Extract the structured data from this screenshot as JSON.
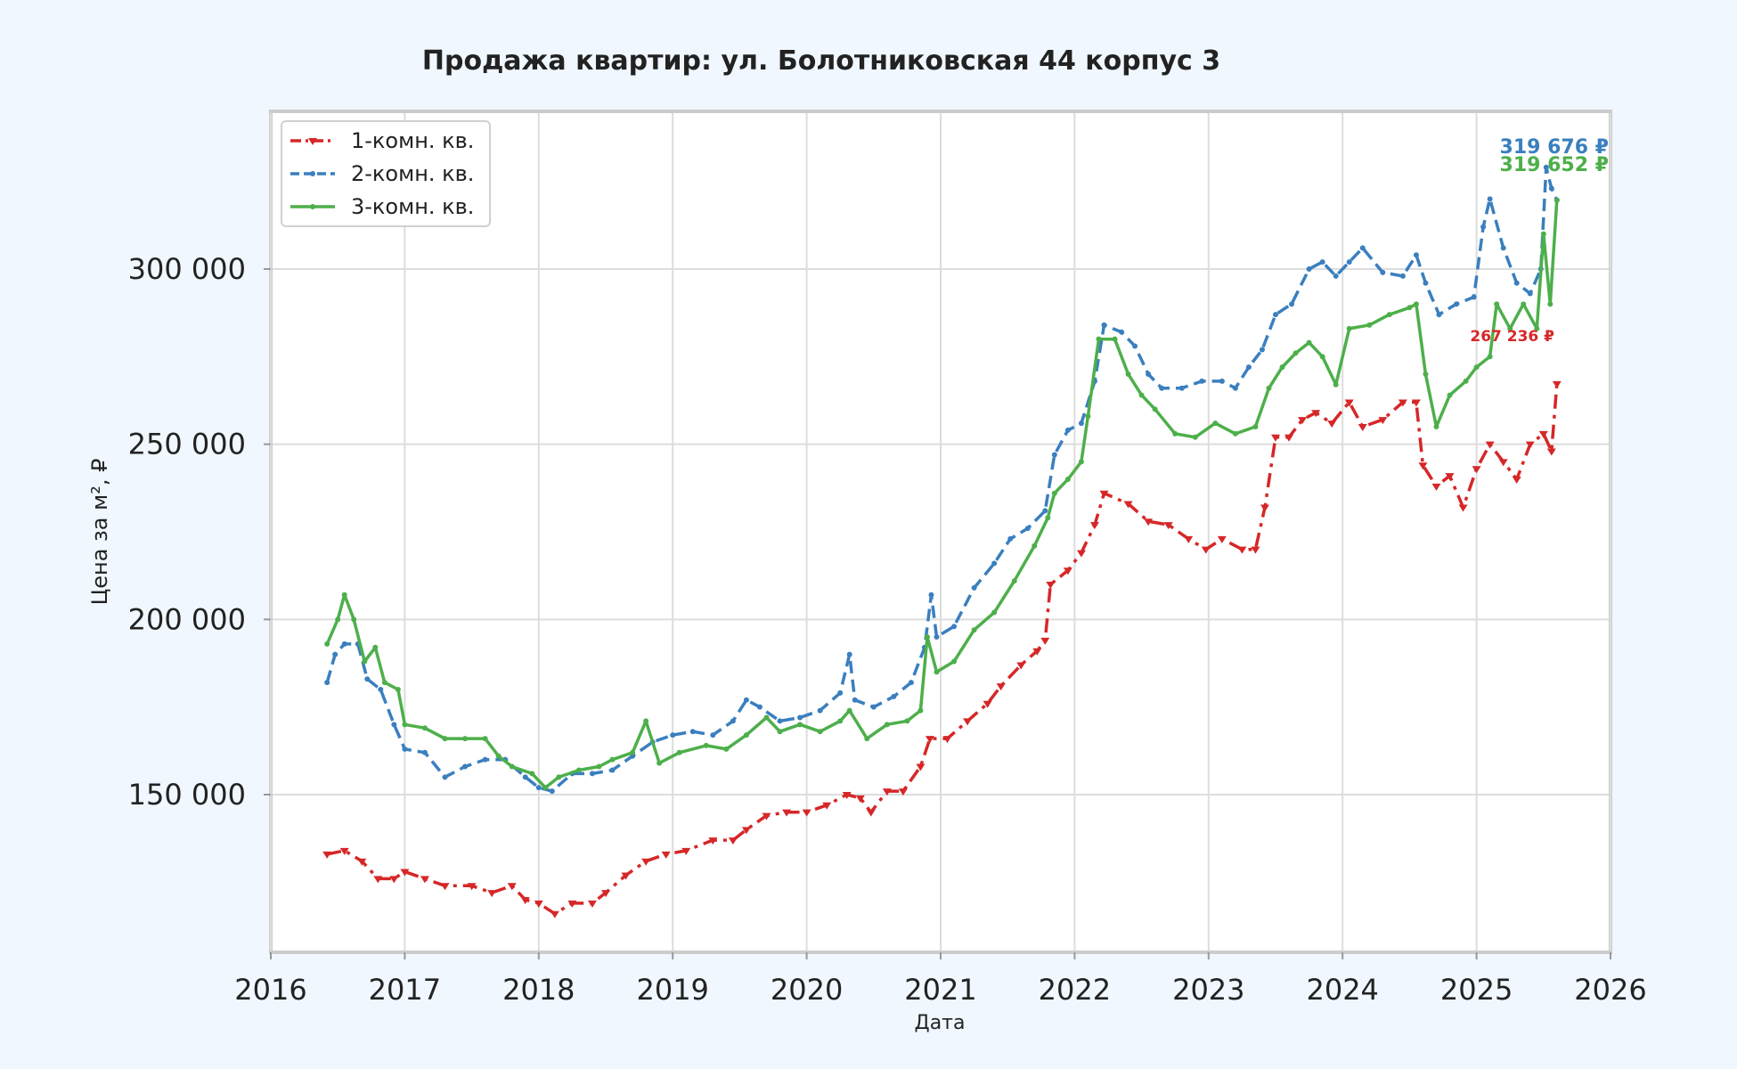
{
  "chart_data": {
    "type": "line",
    "title": "Продажа квартир: ул. Болотниковская 44 корпус 3",
    "xlabel": "Дата",
    "ylabel": "Цена за м², ₽",
    "xlim": [
      2016.0,
      2026.0
    ],
    "ylim": [
      105000,
      345000
    ],
    "x_ticks": [
      2016,
      2017,
      2018,
      2019,
      2020,
      2021,
      2022,
      2023,
      2024,
      2025,
      2026
    ],
    "y_ticks": [
      150000,
      200000,
      250000,
      300000
    ],
    "y_tick_labels": [
      "150 000",
      "200 000",
      "250 000",
      "300 000"
    ],
    "grid": true,
    "legend_position": "top-left",
    "series": [
      {
        "name": "1-комн. кв.",
        "color": "#d62728",
        "style": "dashdot",
        "marker": "triangle-down",
        "end_label": "267 236 ₽",
        "points": [
          [
            2016.42,
            133000
          ],
          [
            2016.55,
            134000
          ],
          [
            2016.68,
            131000
          ],
          [
            2016.8,
            126000
          ],
          [
            2016.92,
            126000
          ],
          [
            2017.0,
            128000
          ],
          [
            2017.15,
            126000
          ],
          [
            2017.3,
            124000
          ],
          [
            2017.5,
            124000
          ],
          [
            2017.65,
            122000
          ],
          [
            2017.8,
            124000
          ],
          [
            2017.9,
            120000
          ],
          [
            2018.0,
            119000
          ],
          [
            2018.12,
            116000
          ],
          [
            2018.25,
            119000
          ],
          [
            2018.4,
            119000
          ],
          [
            2018.5,
            122000
          ],
          [
            2018.65,
            127000
          ],
          [
            2018.8,
            131000
          ],
          [
            2018.95,
            133000
          ],
          [
            2019.1,
            134000
          ],
          [
            2019.3,
            137000
          ],
          [
            2019.45,
            137000
          ],
          [
            2019.55,
            140000
          ],
          [
            2019.7,
            144000
          ],
          [
            2019.85,
            145000
          ],
          [
            2020.0,
            145000
          ],
          [
            2020.15,
            147000
          ],
          [
            2020.3,
            150000
          ],
          [
            2020.4,
            149000
          ],
          [
            2020.48,
            145000
          ],
          [
            2020.6,
            151000
          ],
          [
            2020.72,
            151000
          ],
          [
            2020.85,
            158000
          ],
          [
            2020.92,
            166000
          ],
          [
            2021.05,
            166000
          ],
          [
            2021.2,
            171000
          ],
          [
            2021.35,
            176000
          ],
          [
            2021.45,
            181000
          ],
          [
            2021.6,
            187000
          ],
          [
            2021.72,
            191000
          ],
          [
            2021.78,
            194000
          ],
          [
            2021.82,
            210000
          ],
          [
            2021.95,
            214000
          ],
          [
            2022.05,
            219000
          ],
          [
            2022.15,
            227000
          ],
          [
            2022.22,
            236000
          ],
          [
            2022.4,
            233000
          ],
          [
            2022.55,
            228000
          ],
          [
            2022.7,
            227000
          ],
          [
            2022.85,
            223000
          ],
          [
            2022.98,
            220000
          ],
          [
            2023.1,
            223000
          ],
          [
            2023.25,
            220000
          ],
          [
            2023.35,
            220000
          ],
          [
            2023.42,
            232000
          ],
          [
            2023.5,
            252000
          ],
          [
            2023.6,
            252000
          ],
          [
            2023.7,
            257000
          ],
          [
            2023.8,
            259000
          ],
          [
            2023.92,
            256000
          ],
          [
            2024.05,
            262000
          ],
          [
            2024.15,
            255000
          ],
          [
            2024.3,
            257000
          ],
          [
            2024.45,
            262000
          ],
          [
            2024.55,
            262000
          ],
          [
            2024.6,
            244000
          ],
          [
            2024.7,
            238000
          ],
          [
            2024.8,
            241000
          ],
          [
            2024.9,
            232000
          ],
          [
            2025.0,
            243000
          ],
          [
            2025.1,
            250000
          ],
          [
            2025.2,
            245000
          ],
          [
            2025.3,
            240000
          ],
          [
            2025.4,
            250000
          ],
          [
            2025.5,
            253000
          ],
          [
            2025.56,
            248000
          ],
          [
            2025.6,
            267236
          ]
        ]
      },
      {
        "name": "2-комн. кв.",
        "color": "#3a7fbf",
        "style": "dashed",
        "marker": "point",
        "end_label": "319 676 ₽",
        "points": [
          [
            2016.42,
            182000
          ],
          [
            2016.48,
            190000
          ],
          [
            2016.55,
            193000
          ],
          [
            2016.65,
            193000
          ],
          [
            2016.72,
            183000
          ],
          [
            2016.82,
            180000
          ],
          [
            2016.92,
            170000
          ],
          [
            2017.0,
            163000
          ],
          [
            2017.15,
            162000
          ],
          [
            2017.3,
            155000
          ],
          [
            2017.45,
            158000
          ],
          [
            2017.6,
            160000
          ],
          [
            2017.75,
            160000
          ],
          [
            2017.9,
            155000
          ],
          [
            2018.0,
            152000
          ],
          [
            2018.1,
            151000
          ],
          [
            2018.25,
            156000
          ],
          [
            2018.4,
            156000
          ],
          [
            2018.55,
            157000
          ],
          [
            2018.7,
            161000
          ],
          [
            2018.85,
            165000
          ],
          [
            2019.0,
            167000
          ],
          [
            2019.15,
            168000
          ],
          [
            2019.3,
            167000
          ],
          [
            2019.45,
            171000
          ],
          [
            2019.55,
            177000
          ],
          [
            2019.65,
            175000
          ],
          [
            2019.8,
            171000
          ],
          [
            2019.95,
            172000
          ],
          [
            2020.1,
            174000
          ],
          [
            2020.25,
            179000
          ],
          [
            2020.32,
            190000
          ],
          [
            2020.36,
            177000
          ],
          [
            2020.5,
            175000
          ],
          [
            2020.65,
            178000
          ],
          [
            2020.78,
            182000
          ],
          [
            2020.88,
            192000
          ],
          [
            2020.93,
            207000
          ],
          [
            2020.97,
            195000
          ],
          [
            2021.1,
            198000
          ],
          [
            2021.25,
            209000
          ],
          [
            2021.4,
            216000
          ],
          [
            2021.52,
            223000
          ],
          [
            2021.65,
            226000
          ],
          [
            2021.78,
            231000
          ],
          [
            2021.85,
            247000
          ],
          [
            2021.95,
            254000
          ],
          [
            2022.05,
            256000
          ],
          [
            2022.15,
            268000
          ],
          [
            2022.22,
            284000
          ],
          [
            2022.35,
            282000
          ],
          [
            2022.45,
            278000
          ],
          [
            2022.55,
            270000
          ],
          [
            2022.65,
            266000
          ],
          [
            2022.8,
            266000
          ],
          [
            2022.95,
            268000
          ],
          [
            2023.1,
            268000
          ],
          [
            2023.2,
            266000
          ],
          [
            2023.3,
            272000
          ],
          [
            2023.4,
            277000
          ],
          [
            2023.5,
            287000
          ],
          [
            2023.62,
            290000
          ],
          [
            2023.75,
            300000
          ],
          [
            2023.85,
            302000
          ],
          [
            2023.95,
            298000
          ],
          [
            2024.05,
            302000
          ],
          [
            2024.15,
            306000
          ],
          [
            2024.3,
            299000
          ],
          [
            2024.45,
            298000
          ],
          [
            2024.55,
            304000
          ],
          [
            2024.62,
            296000
          ],
          [
            2024.72,
            287000
          ],
          [
            2024.85,
            290000
          ],
          [
            2024.98,
            292000
          ],
          [
            2025.05,
            312000
          ],
          [
            2025.1,
            320000
          ],
          [
            2025.2,
            306000
          ],
          [
            2025.3,
            296000
          ],
          [
            2025.4,
            293000
          ],
          [
            2025.48,
            300000
          ],
          [
            2025.52,
            329000
          ],
          [
            2025.56,
            323000
          ],
          [
            2025.6,
            319676
          ]
        ]
      },
      {
        "name": "3-комн. кв.",
        "color": "#4daf4a",
        "style": "solid",
        "marker": "point",
        "end_label": "319 652 ₽",
        "points": [
          [
            2016.42,
            193000
          ],
          [
            2016.5,
            200000
          ],
          [
            2016.55,
            207000
          ],
          [
            2016.62,
            200000
          ],
          [
            2016.7,
            188000
          ],
          [
            2016.78,
            192000
          ],
          [
            2016.85,
            182000
          ],
          [
            2016.95,
            180000
          ],
          [
            2017.0,
            170000
          ],
          [
            2017.15,
            169000
          ],
          [
            2017.3,
            166000
          ],
          [
            2017.45,
            166000
          ],
          [
            2017.6,
            166000
          ],
          [
            2017.7,
            161000
          ],
          [
            2017.8,
            158000
          ],
          [
            2017.95,
            156000
          ],
          [
            2018.05,
            152000
          ],
          [
            2018.15,
            155000
          ],
          [
            2018.3,
            157000
          ],
          [
            2018.45,
            158000
          ],
          [
            2018.55,
            160000
          ],
          [
            2018.7,
            162000
          ],
          [
            2018.8,
            171000
          ],
          [
            2018.9,
            159000
          ],
          [
            2019.05,
            162000
          ],
          [
            2019.25,
            164000
          ],
          [
            2019.4,
            163000
          ],
          [
            2019.55,
            167000
          ],
          [
            2019.7,
            172000
          ],
          [
            2019.8,
            168000
          ],
          [
            2019.95,
            170000
          ],
          [
            2020.1,
            168000
          ],
          [
            2020.25,
            171000
          ],
          [
            2020.32,
            174000
          ],
          [
            2020.45,
            166000
          ],
          [
            2020.6,
            170000
          ],
          [
            2020.75,
            171000
          ],
          [
            2020.85,
            174000
          ],
          [
            2020.9,
            195000
          ],
          [
            2020.97,
            185000
          ],
          [
            2021.1,
            188000
          ],
          [
            2021.25,
            197000
          ],
          [
            2021.4,
            202000
          ],
          [
            2021.55,
            211000
          ],
          [
            2021.7,
            221000
          ],
          [
            2021.8,
            229000
          ],
          [
            2021.85,
            236000
          ],
          [
            2021.95,
            240000
          ],
          [
            2022.05,
            245000
          ],
          [
            2022.1,
            258000
          ],
          [
            2022.18,
            280000
          ],
          [
            2022.3,
            280000
          ],
          [
            2022.4,
            270000
          ],
          [
            2022.5,
            264000
          ],
          [
            2022.6,
            260000
          ],
          [
            2022.75,
            253000
          ],
          [
            2022.9,
            252000
          ],
          [
            2023.05,
            256000
          ],
          [
            2023.2,
            253000
          ],
          [
            2023.35,
            255000
          ],
          [
            2023.45,
            266000
          ],
          [
            2023.55,
            272000
          ],
          [
            2023.65,
            276000
          ],
          [
            2023.75,
            279000
          ],
          [
            2023.85,
            275000
          ],
          [
            2023.95,
            267000
          ],
          [
            2024.05,
            283000
          ],
          [
            2024.2,
            284000
          ],
          [
            2024.35,
            287000
          ],
          [
            2024.5,
            289000
          ],
          [
            2024.55,
            290000
          ],
          [
            2024.62,
            270000
          ],
          [
            2024.7,
            255000
          ],
          [
            2024.8,
            264000
          ],
          [
            2024.92,
            268000
          ],
          [
            2025.0,
            272000
          ],
          [
            2025.1,
            275000
          ],
          [
            2025.15,
            290000
          ],
          [
            2025.25,
            283000
          ],
          [
            2025.35,
            290000
          ],
          [
            2025.45,
            283000
          ],
          [
            2025.5,
            310000
          ],
          [
            2025.55,
            290000
          ],
          [
            2025.6,
            319652
          ]
        ]
      }
    ]
  }
}
